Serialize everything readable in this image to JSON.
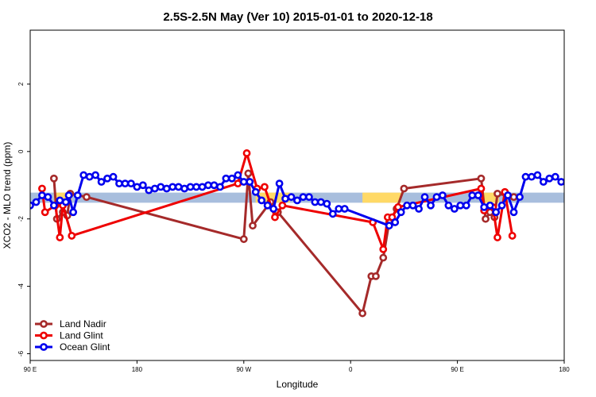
{
  "chart_data": {
    "type": "line",
    "title": "2.5S-2.5N May (Ver 10)   2015-01-01 to 2020-12-18",
    "xlabel": "Longitude",
    "ylabel": "XCO2 - MLO trend (ppm)",
    "xlim": [
      0,
      360
    ],
    "ylim": [
      -6.2,
      3.6
    ],
    "x_ticks": [
      {
        "x": 0,
        "label": "90 E"
      },
      {
        "x": 72,
        "label": "180"
      },
      {
        "x": 144,
        "label": "90 W"
      },
      {
        "x": 216,
        "label": "0"
      },
      {
        "x": 288,
        "label": "90 E"
      },
      {
        "x": 360,
        "label": "180"
      }
    ],
    "y_ticks": [
      {
        "y": 2,
        "label": "2"
      },
      {
        "y": 0,
        "label": "0"
      },
      {
        "y": -2,
        "label": "-2"
      },
      {
        "y": -4,
        "label": "-4"
      },
      {
        "y": -6,
        "label": "-6"
      }
    ],
    "band": {
      "y_from": -1.52,
      "y_to": -1.22,
      "color": "#a8bedd"
    },
    "highlights": [
      {
        "x_from": 16,
        "x_to": 28,
        "color": "#ffd966"
      },
      {
        "x_from": 152,
        "x_to": 175,
        "color": "#ffd966"
      },
      {
        "x_from": 224,
        "x_to": 250,
        "color": "#ffd966"
      },
      {
        "x_from": 304,
        "x_to": 316,
        "color": "#ffd966"
      }
    ],
    "legend_position": "bottom-left",
    "series": [
      {
        "name": "Land Nadir",
        "color": "#a52a2a",
        "points": [
          [
            16,
            -0.8
          ],
          [
            18,
            -2.0
          ],
          [
            22,
            -1.8
          ],
          [
            25,
            -1.9
          ],
          [
            27,
            -1.25
          ],
          [
            38,
            -1.35
          ],
          [
            144,
            -2.6
          ],
          [
            147,
            -0.65
          ],
          [
            150,
            -2.2
          ],
          [
            162,
            -1.5
          ],
          [
            167,
            -1.8
          ],
          [
            224,
            -4.8
          ],
          [
            230,
            -3.7
          ],
          [
            233,
            -3.7
          ],
          [
            238,
            -3.15
          ],
          [
            242,
            -2.1
          ],
          [
            247,
            -1.7
          ],
          [
            252,
            -1.1
          ],
          [
            304,
            -0.8
          ],
          [
            307,
            -2.0
          ],
          [
            310,
            -1.8
          ],
          [
            313,
            -1.95
          ],
          [
            315,
            -1.25
          ],
          [
            326,
            -1.35
          ]
        ]
      },
      {
        "name": "Land Glint",
        "color": "#ee0000",
        "points": [
          [
            8,
            -1.1
          ],
          [
            10,
            -1.8
          ],
          [
            17,
            -1.6
          ],
          [
            20,
            -2.55
          ],
          [
            22,
            -1.6
          ],
          [
            28,
            -2.5
          ],
          [
            140,
            -0.95
          ],
          [
            146,
            -0.05
          ],
          [
            153,
            -1.1
          ],
          [
            158,
            -1.05
          ],
          [
            165,
            -1.95
          ],
          [
            170,
            -1.6
          ],
          [
            231,
            -2.1
          ],
          [
            238,
            -2.9
          ],
          [
            241,
            -1.95
          ],
          [
            244,
            -1.95
          ],
          [
            248,
            -1.65
          ],
          [
            304,
            -1.1
          ],
          [
            306,
            -1.75
          ],
          [
            312,
            -1.65
          ],
          [
            315,
            -2.55
          ],
          [
            320,
            -1.2
          ],
          [
            325,
            -2.5
          ]
        ]
      },
      {
        "name": "Ocean Glint",
        "color": "#0000ee",
        "points": [
          [
            0,
            -1.6
          ],
          [
            4,
            -1.5
          ],
          [
            8,
            -1.3
          ],
          [
            12,
            -1.35
          ],
          [
            16,
            -1.6
          ],
          [
            20,
            -1.45
          ],
          [
            24,
            -1.5
          ],
          [
            26,
            -1.3
          ],
          [
            29,
            -1.8
          ],
          [
            32,
            -1.3
          ],
          [
            36,
            -0.7
          ],
          [
            40,
            -0.75
          ],
          [
            44,
            -0.7
          ],
          [
            48,
            -0.9
          ],
          [
            52,
            -0.8
          ],
          [
            56,
            -0.75
          ],
          [
            60,
            -0.95
          ],
          [
            64,
            -0.95
          ],
          [
            68,
            -0.95
          ],
          [
            72,
            -1.05
          ],
          [
            76,
            -1.0
          ],
          [
            80,
            -1.15
          ],
          [
            84,
            -1.1
          ],
          [
            88,
            -1.05
          ],
          [
            92,
            -1.1
          ],
          [
            96,
            -1.05
          ],
          [
            100,
            -1.05
          ],
          [
            104,
            -1.1
          ],
          [
            108,
            -1.05
          ],
          [
            112,
            -1.05
          ],
          [
            116,
            -1.05
          ],
          [
            120,
            -1.0
          ],
          [
            124,
            -1.0
          ],
          [
            128,
            -1.05
          ],
          [
            132,
            -0.8
          ],
          [
            136,
            -0.8
          ],
          [
            140,
            -0.7
          ],
          [
            144,
            -0.9
          ],
          [
            148,
            -0.9
          ],
          [
            152,
            -1.2
          ],
          [
            156,
            -1.45
          ],
          [
            160,
            -1.6
          ],
          [
            164,
            -1.7
          ],
          [
            168,
            -0.95
          ],
          [
            172,
            -1.4
          ],
          [
            176,
            -1.35
          ],
          [
            180,
            -1.45
          ],
          [
            184,
            -1.35
          ],
          [
            188,
            -1.35
          ],
          [
            192,
            -1.5
          ],
          [
            196,
            -1.5
          ],
          [
            200,
            -1.55
          ],
          [
            204,
            -1.85
          ],
          [
            208,
            -1.7
          ],
          [
            212,
            -1.7
          ],
          [
            242,
            -2.2
          ],
          [
            246,
            -2.1
          ],
          [
            250,
            -1.8
          ],
          [
            254,
            -1.6
          ],
          [
            258,
            -1.6
          ],
          [
            262,
            -1.7
          ],
          [
            266,
            -1.35
          ],
          [
            270,
            -1.6
          ],
          [
            274,
            -1.35
          ],
          [
            278,
            -1.3
          ],
          [
            282,
            -1.6
          ],
          [
            286,
            -1.7
          ],
          [
            290,
            -1.6
          ],
          [
            294,
            -1.6
          ],
          [
            298,
            -1.3
          ],
          [
            302,
            -1.3
          ],
          [
            306,
            -1.65
          ],
          [
            310,
            -1.6
          ],
          [
            314,
            -1.8
          ],
          [
            318,
            -1.6
          ],
          [
            322,
            -1.3
          ],
          [
            326,
            -1.8
          ],
          [
            330,
            -1.35
          ],
          [
            334,
            -0.75
          ],
          [
            338,
            -0.75
          ],
          [
            342,
            -0.7
          ],
          [
            346,
            -0.9
          ],
          [
            350,
            -0.8
          ],
          [
            354,
            -0.75
          ],
          [
            358,
            -0.9
          ],
          [
            362,
            -0.95
          ]
        ]
      }
    ]
  }
}
